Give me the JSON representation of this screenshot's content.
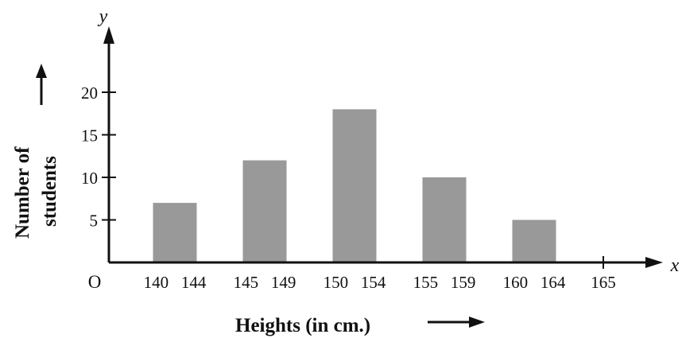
{
  "chart_data": {
    "type": "bar",
    "categories": [
      "140 144",
      "145 149",
      "150 154",
      "155 159",
      "160 164"
    ],
    "values": [
      7,
      12,
      18,
      10,
      5
    ],
    "extra_x_tick": "165",
    "ylim": [
      0,
      20
    ],
    "y_ticks": [
      5,
      10,
      15,
      20
    ],
    "xlabel": "Heights (in cm.)",
    "ylabel_line1": "Number of",
    "ylabel_line2": "students",
    "x_axis_letter": "x",
    "y_axis_letter": "y",
    "origin_label": "O",
    "bar_color": "#999999",
    "grid": false
  }
}
